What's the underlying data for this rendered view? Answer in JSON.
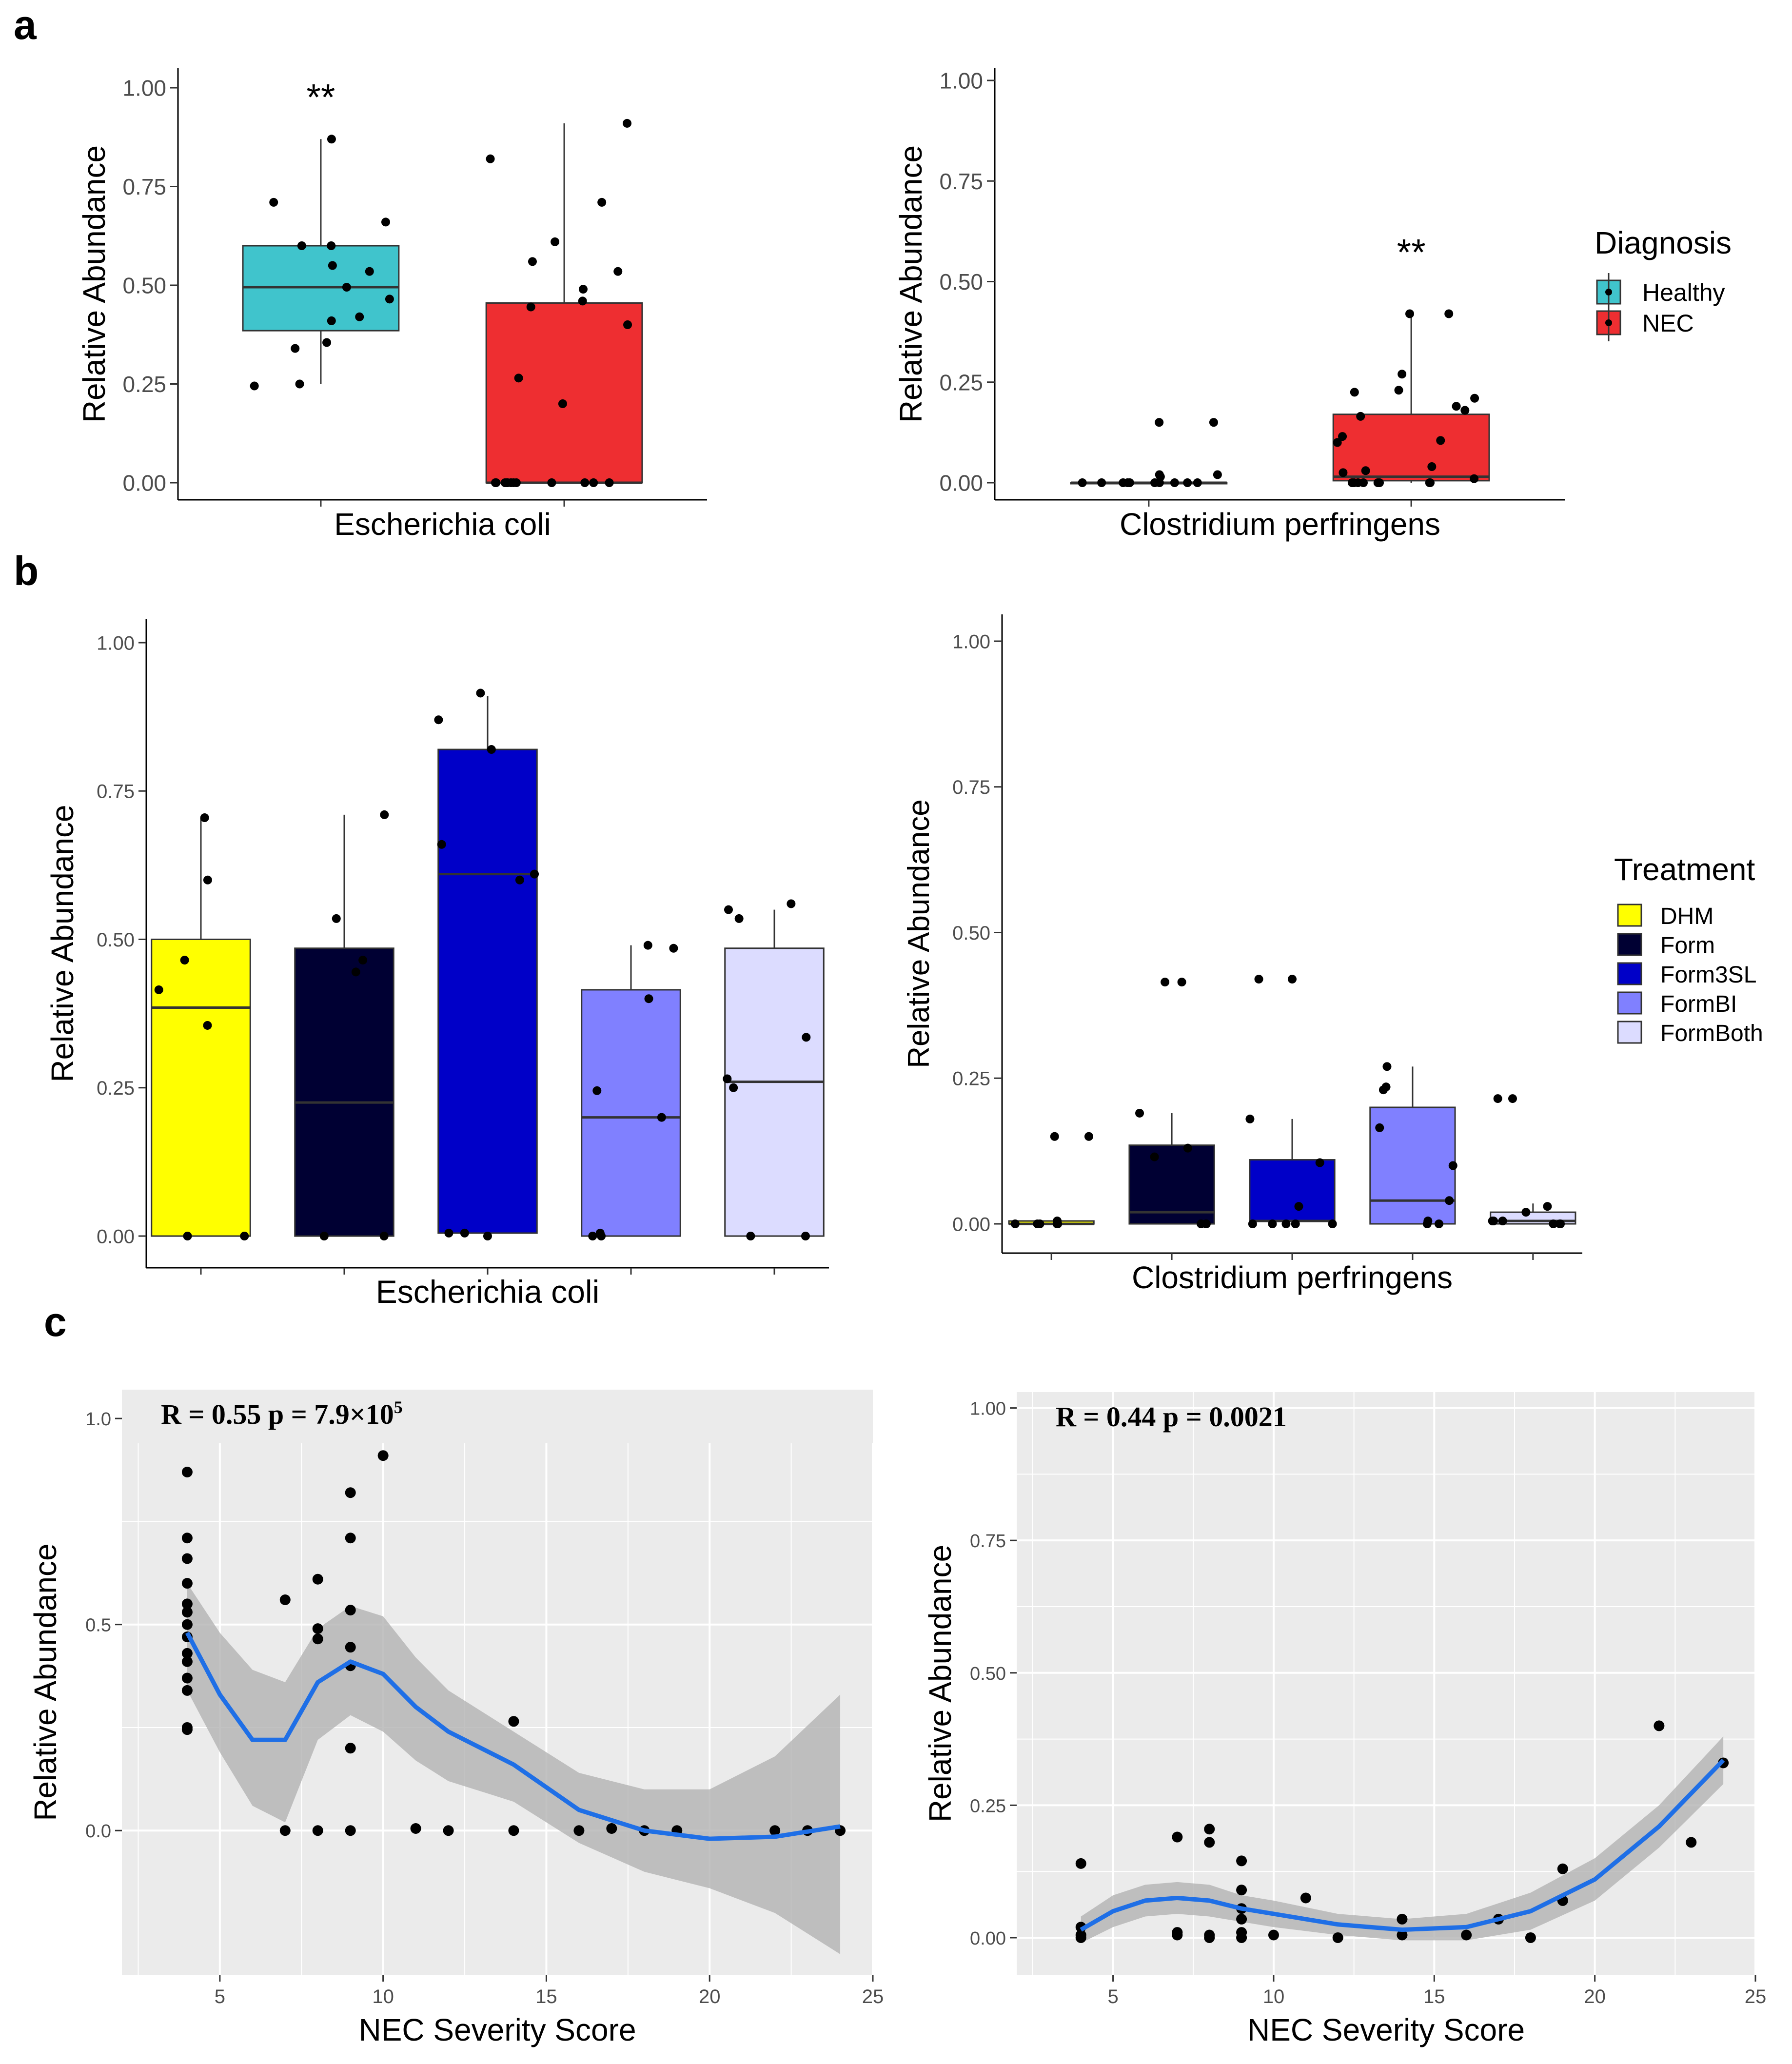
{
  "panel_labels": {
    "a": "a",
    "b": "b",
    "c": "c"
  },
  "colors": {
    "Healthy": "#40c4cc",
    "NEC": "#ee2e31",
    "DHM": "#ffff00",
    "Form": "#000033",
    "Form3SL": "#0000c8",
    "FormBI": "#8080ff",
    "FormBoth": "#dcdcff",
    "smooth": "#1f6fe6",
    "ribbon": "#b3b3b3",
    "panel_bg": "#ebebeb"
  },
  "legends": {
    "diagnosis": {
      "title": "Diagnosis",
      "items": [
        "Healthy",
        "NEC"
      ]
    },
    "treatment": {
      "title": "Treatment",
      "items": [
        "DHM",
        "Form",
        "Form3SL",
        "FormBI",
        "FormBoth"
      ]
    }
  },
  "chart_data": [
    {
      "id": "a1",
      "type": "box",
      "xlabel": "Escherichia coli",
      "ylabel": "Relative Abundance",
      "ylim": [
        0,
        1
      ],
      "yticks": [
        "0.00",
        "0.25",
        "0.50",
        "0.75",
        "1.00"
      ],
      "annotation": "**",
      "groups": [
        {
          "name": "Healthy",
          "box": {
            "q1": 0.385,
            "median": 0.495,
            "q3": 0.6,
            "lower": 0.25,
            "upper": 0.87
          },
          "points": [
            0.245,
            0.25,
            0.34,
            0.465,
            0.355,
            0.87,
            0.6,
            0.55,
            0.41,
            0.6,
            0.66,
            0.535,
            0.71,
            0.42,
            0.495
          ]
        },
        {
          "name": "NEC",
          "box": {
            "q1": 0.0,
            "median": 0.0,
            "q3": 0.455,
            "lower": 0.0,
            "upper": 0.91
          },
          "points": [
            0.0,
            0.56,
            0.91,
            0.46,
            0.4,
            0.0,
            0.0,
            0.535,
            0.0,
            0.445,
            0.71,
            0.0,
            0.0,
            0.0,
            0.265,
            0.2,
            0.61,
            0.0,
            0.82,
            0.0,
            0.49,
            0.0,
            0.0,
            0.0
          ]
        }
      ]
    },
    {
      "id": "a2",
      "type": "box",
      "xlabel": "Clostridium perfringens",
      "ylabel": "Relative Abundance",
      "ylim": [
        0,
        1
      ],
      "yticks": [
        "0.00",
        "0.25",
        "0.50",
        "0.75",
        "1.00"
      ],
      "annotation": "**",
      "groups": [
        {
          "name": "Healthy",
          "box": {
            "q1": 0.0,
            "median": 0.0,
            "q3": 0.0,
            "lower": 0.0,
            "upper": 0.0
          },
          "points": [
            0.0,
            0.0,
            0.0,
            0.02,
            0.0,
            0.0,
            0.15,
            0.015,
            0.02,
            0.0,
            0.15,
            0.0,
            0.0,
            0.0,
            0.0
          ]
        },
        {
          "name": "NEC",
          "box": {
            "q1": 0.005,
            "median": 0.015,
            "q3": 0.17,
            "lower": 0.0,
            "upper": 0.42
          },
          "points": [
            0.23,
            0.0,
            0.01,
            0.0,
            0.21,
            0.105,
            0.0,
            0.18,
            0.115,
            0.0,
            0.42,
            0.04,
            0.0,
            0.025,
            0.03,
            0.42,
            0.27,
            0.0,
            0.1,
            0.225,
            0.0,
            0.19,
            0.0,
            0.165
          ]
        }
      ]
    },
    {
      "id": "b1",
      "type": "box",
      "xlabel": "Escherichia coli",
      "ylabel": "Relative Abundance",
      "ylim": [
        0,
        1
      ],
      "yticks": [
        "0.00",
        "0.25",
        "0.50",
        "0.75",
        "1.00"
      ],
      "groups": [
        {
          "name": "DHM",
          "box": {
            "q1": 0.0,
            "median": 0.385,
            "q3": 0.5,
            "lower": 0.0,
            "upper": 0.705
          },
          "points": [
            0.415,
            0.0,
            0.465,
            0.0,
            0.705,
            0.6,
            0.355
          ]
        },
        {
          "name": "Form",
          "box": {
            "q1": 0.0,
            "median": 0.225,
            "q3": 0.485,
            "lower": 0.0,
            "upper": 0.71
          },
          "points": [
            0.535,
            0.0,
            0.0,
            0.445,
            0.71,
            0.465
          ]
        },
        {
          "name": "Form3SL",
          "box": {
            "q1": 0.005,
            "median": 0.61,
            "q3": 0.82,
            "lower": 0.005,
            "upper": 0.91
          },
          "points": [
            0.6,
            0.82,
            0.66,
            0.005,
            0.005,
            0.61,
            0.915,
            0.87,
            0.0
          ]
        },
        {
          "name": "FormBI",
          "box": {
            "q1": 0.0,
            "median": 0.2,
            "q3": 0.415,
            "lower": 0.0,
            "upper": 0.49
          },
          "points": [
            0.245,
            0.0,
            0.2,
            0.0,
            0.005,
            0.4,
            0.485,
            0.49
          ]
        },
        {
          "name": "FormBoth",
          "box": {
            "q1": 0.0,
            "median": 0.26,
            "q3": 0.485,
            "lower": 0.0,
            "upper": 0.55
          },
          "points": [
            0.0,
            0.55,
            0.265,
            0.335,
            0.25,
            0.0,
            0.535,
            0.56
          ]
        }
      ]
    },
    {
      "id": "b2",
      "type": "box",
      "xlabel": "Clostridium perfringens",
      "ylabel": "Relative Abundance",
      "ylim": [
        0,
        1
      ],
      "yticks": [
        "0.00",
        "0.25",
        "0.50",
        "0.75",
        "1.00"
      ],
      "groups": [
        {
          "name": "DHM",
          "box": {
            "q1": 0.0,
            "median": 0.0,
            "q3": 0.005,
            "lower": 0.0,
            "upper": 0.0
          },
          "points": [
            0.0,
            0.0,
            0.0,
            0.15,
            0.15,
            0.005,
            0.0,
            0.0
          ]
        },
        {
          "name": "Form",
          "box": {
            "q1": 0.0,
            "median": 0.02,
            "q3": 0.135,
            "lower": 0.0,
            "upper": 0.19
          },
          "points": [
            0.415,
            0.115,
            0.0,
            0.415,
            0.0,
            0.13,
            0.19,
            0.0
          ]
        },
        {
          "name": "Form3SL",
          "box": {
            "q1": 0.005,
            "median": 0.005,
            "q3": 0.11,
            "lower": 0.0,
            "upper": 0.18
          },
          "points": [
            0.105,
            0.0,
            0.0,
            0.42,
            0.0,
            0.0,
            0.0,
            0.18,
            0.42,
            0.03
          ]
        },
        {
          "name": "FormBI",
          "box": {
            "q1": 0.0,
            "median": 0.04,
            "q3": 0.2,
            "lower": 0.0,
            "upper": 0.27
          },
          "points": [
            0.23,
            0.165,
            0.0,
            0.27,
            0.235,
            0.005,
            0.04,
            0.0,
            0.1
          ]
        },
        {
          "name": "FormBoth",
          "box": {
            "q1": 0.0,
            "median": 0.005,
            "q3": 0.02,
            "lower": 0.0,
            "upper": 0.035
          },
          "points": [
            0.0,
            0.005,
            0.005,
            0.0,
            0.215,
            0.215,
            0.005,
            0.03,
            0.02,
            0.0
          ]
        }
      ]
    },
    {
      "id": "c1",
      "type": "scatter",
      "xlabel": "NEC Severity Score",
      "ylabel": "Relative Abundance",
      "xlim": [
        2,
        25
      ],
      "ylim": [
        -0.35,
        1.07
      ],
      "xticks": [
        5,
        10,
        15,
        20,
        25
      ],
      "yticks": [
        0.0,
        0.5,
        1.0
      ],
      "ytick_labels": [
        "0.0",
        "0.5",
        "1.0"
      ],
      "annotation": "R = 0.55 p = 7.9×10",
      "annotation_sup": "5",
      "points": [
        [
          4,
          0.87
        ],
        [
          4,
          0.71
        ],
        [
          4,
          0.66
        ],
        [
          4,
          0.6
        ],
        [
          4,
          0.55
        ],
        [
          4,
          0.53
        ],
        [
          4,
          0.5
        ],
        [
          4,
          0.47
        ],
        [
          4,
          0.43
        ],
        [
          4,
          0.41
        ],
        [
          4,
          0.37
        ],
        [
          4,
          0.34
        ],
        [
          4,
          0.25
        ],
        [
          4,
          0.245
        ],
        [
          7,
          0.56
        ],
        [
          7,
          0.0
        ],
        [
          8,
          0.61
        ],
        [
          8,
          0.49
        ],
        [
          8,
          0.465
        ],
        [
          8,
          0.0
        ],
        [
          9,
          0.82
        ],
        [
          9,
          0.71
        ],
        [
          9,
          0.535
        ],
        [
          9,
          0.445
        ],
        [
          9,
          0.4
        ],
        [
          9,
          0.2
        ],
        [
          9,
          0.0
        ],
        [
          10,
          0.91
        ],
        [
          11,
          0.005
        ],
        [
          12,
          0.0
        ],
        [
          14,
          0.265
        ],
        [
          14,
          0.0
        ],
        [
          16,
          0.0
        ],
        [
          17,
          0.005
        ],
        [
          18,
          0.0
        ],
        [
          19,
          0.0
        ],
        [
          22,
          0.0
        ],
        [
          23,
          0.0
        ],
        [
          24,
          0.0
        ]
      ],
      "smooth": [
        [
          4,
          0.48
        ],
        [
          5,
          0.33
        ],
        [
          6,
          0.22
        ],
        [
          7,
          0.22
        ],
        [
          8,
          0.36
        ],
        [
          9,
          0.41
        ],
        [
          10,
          0.38
        ],
        [
          11,
          0.3
        ],
        [
          12,
          0.24
        ],
        [
          14,
          0.16
        ],
        [
          16,
          0.05
        ],
        [
          18,
          0.0
        ],
        [
          20,
          -0.02
        ],
        [
          22,
          -0.015
        ],
        [
          24,
          0.01
        ]
      ],
      "ribbon_upper": [
        [
          4,
          0.6
        ],
        [
          5,
          0.48
        ],
        [
          6,
          0.39
        ],
        [
          7,
          0.36
        ],
        [
          8,
          0.49
        ],
        [
          9,
          0.545
        ],
        [
          10,
          0.52
        ],
        [
          11,
          0.42
        ],
        [
          12,
          0.34
        ],
        [
          14,
          0.24
        ],
        [
          16,
          0.14
        ],
        [
          18,
          0.1
        ],
        [
          20,
          0.1
        ],
        [
          22,
          0.18
        ],
        [
          24,
          0.33
        ]
      ],
      "ribbon_lower": [
        [
          4,
          0.34
        ],
        [
          5,
          0.19
        ],
        [
          6,
          0.06
        ],
        [
          7,
          0.02
        ],
        [
          8,
          0.22
        ],
        [
          9,
          0.28
        ],
        [
          10,
          0.24
        ],
        [
          11,
          0.17
        ],
        [
          12,
          0.12
        ],
        [
          14,
          0.07
        ],
        [
          16,
          -0.03
        ],
        [
          18,
          -0.1
        ],
        [
          20,
          -0.14
        ],
        [
          22,
          -0.2
        ],
        [
          24,
          -0.3
        ]
      ]
    },
    {
      "id": "c2",
      "type": "scatter",
      "xlabel": "NEC Severity Score",
      "ylabel": "Relative Abundance",
      "xlim": [
        2,
        25
      ],
      "ylim": [
        -0.07,
        1.03
      ],
      "xticks": [
        5,
        10,
        15,
        20,
        25
      ],
      "yticks": [
        0.0,
        0.25,
        0.5,
        0.75,
        1.0
      ],
      "ytick_labels": [
        "0.00",
        "0.25",
        "0.50",
        "0.75",
        "1.00"
      ],
      "annotation": "R = 0.44 p = 0.0021",
      "annotation_sup": "",
      "points": [
        [
          4,
          0.14
        ],
        [
          4,
          0.02
        ],
        [
          4,
          0.005
        ],
        [
          4,
          0.0
        ],
        [
          7,
          0.19
        ],
        [
          7,
          0.01
        ],
        [
          7,
          0.005
        ],
        [
          8,
          0.205
        ],
        [
          8,
          0.18
        ],
        [
          8,
          0.005
        ],
        [
          8,
          0.0
        ],
        [
          9,
          0.145
        ],
        [
          9,
          0.09
        ],
        [
          9,
          0.055
        ],
        [
          9,
          0.035
        ],
        [
          9,
          0.01
        ],
        [
          9,
          0.0
        ],
        [
          10,
          0.005
        ],
        [
          11,
          0.075
        ],
        [
          12,
          0.0
        ],
        [
          14,
          0.035
        ],
        [
          14,
          0.005
        ],
        [
          16,
          0.005
        ],
        [
          17,
          0.035
        ],
        [
          18,
          0.0
        ],
        [
          19,
          0.13
        ],
        [
          19,
          0.07
        ],
        [
          22,
          0.4
        ],
        [
          23,
          0.18
        ],
        [
          24,
          0.33
        ]
      ],
      "smooth": [
        [
          4,
          0.015
        ],
        [
          5,
          0.05
        ],
        [
          6,
          0.07
        ],
        [
          7,
          0.075
        ],
        [
          8,
          0.07
        ],
        [
          9,
          0.055
        ],
        [
          10,
          0.045
        ],
        [
          12,
          0.025
        ],
        [
          14,
          0.015
        ],
        [
          16,
          0.02
        ],
        [
          18,
          0.05
        ],
        [
          20,
          0.11
        ],
        [
          22,
          0.21
        ],
        [
          24,
          0.335
        ]
      ],
      "ribbon_upper": [
        [
          4,
          0.04
        ],
        [
          5,
          0.08
        ],
        [
          6,
          0.1
        ],
        [
          7,
          0.105
        ],
        [
          8,
          0.1
        ],
        [
          9,
          0.08
        ],
        [
          10,
          0.07
        ],
        [
          12,
          0.045
        ],
        [
          14,
          0.035
        ],
        [
          16,
          0.045
        ],
        [
          18,
          0.085
        ],
        [
          20,
          0.15
        ],
        [
          22,
          0.25
        ],
        [
          24,
          0.38
        ]
      ],
      "ribbon_lower": [
        [
          4,
          -0.01
        ],
        [
          5,
          0.02
        ],
        [
          6,
          0.04
        ],
        [
          7,
          0.045
        ],
        [
          8,
          0.04
        ],
        [
          9,
          0.03
        ],
        [
          10,
          0.02
        ],
        [
          12,
          0.005
        ],
        [
          14,
          -0.005
        ],
        [
          16,
          -0.005
        ],
        [
          18,
          0.015
        ],
        [
          20,
          0.07
        ],
        [
          22,
          0.17
        ],
        [
          24,
          0.29
        ]
      ]
    }
  ]
}
